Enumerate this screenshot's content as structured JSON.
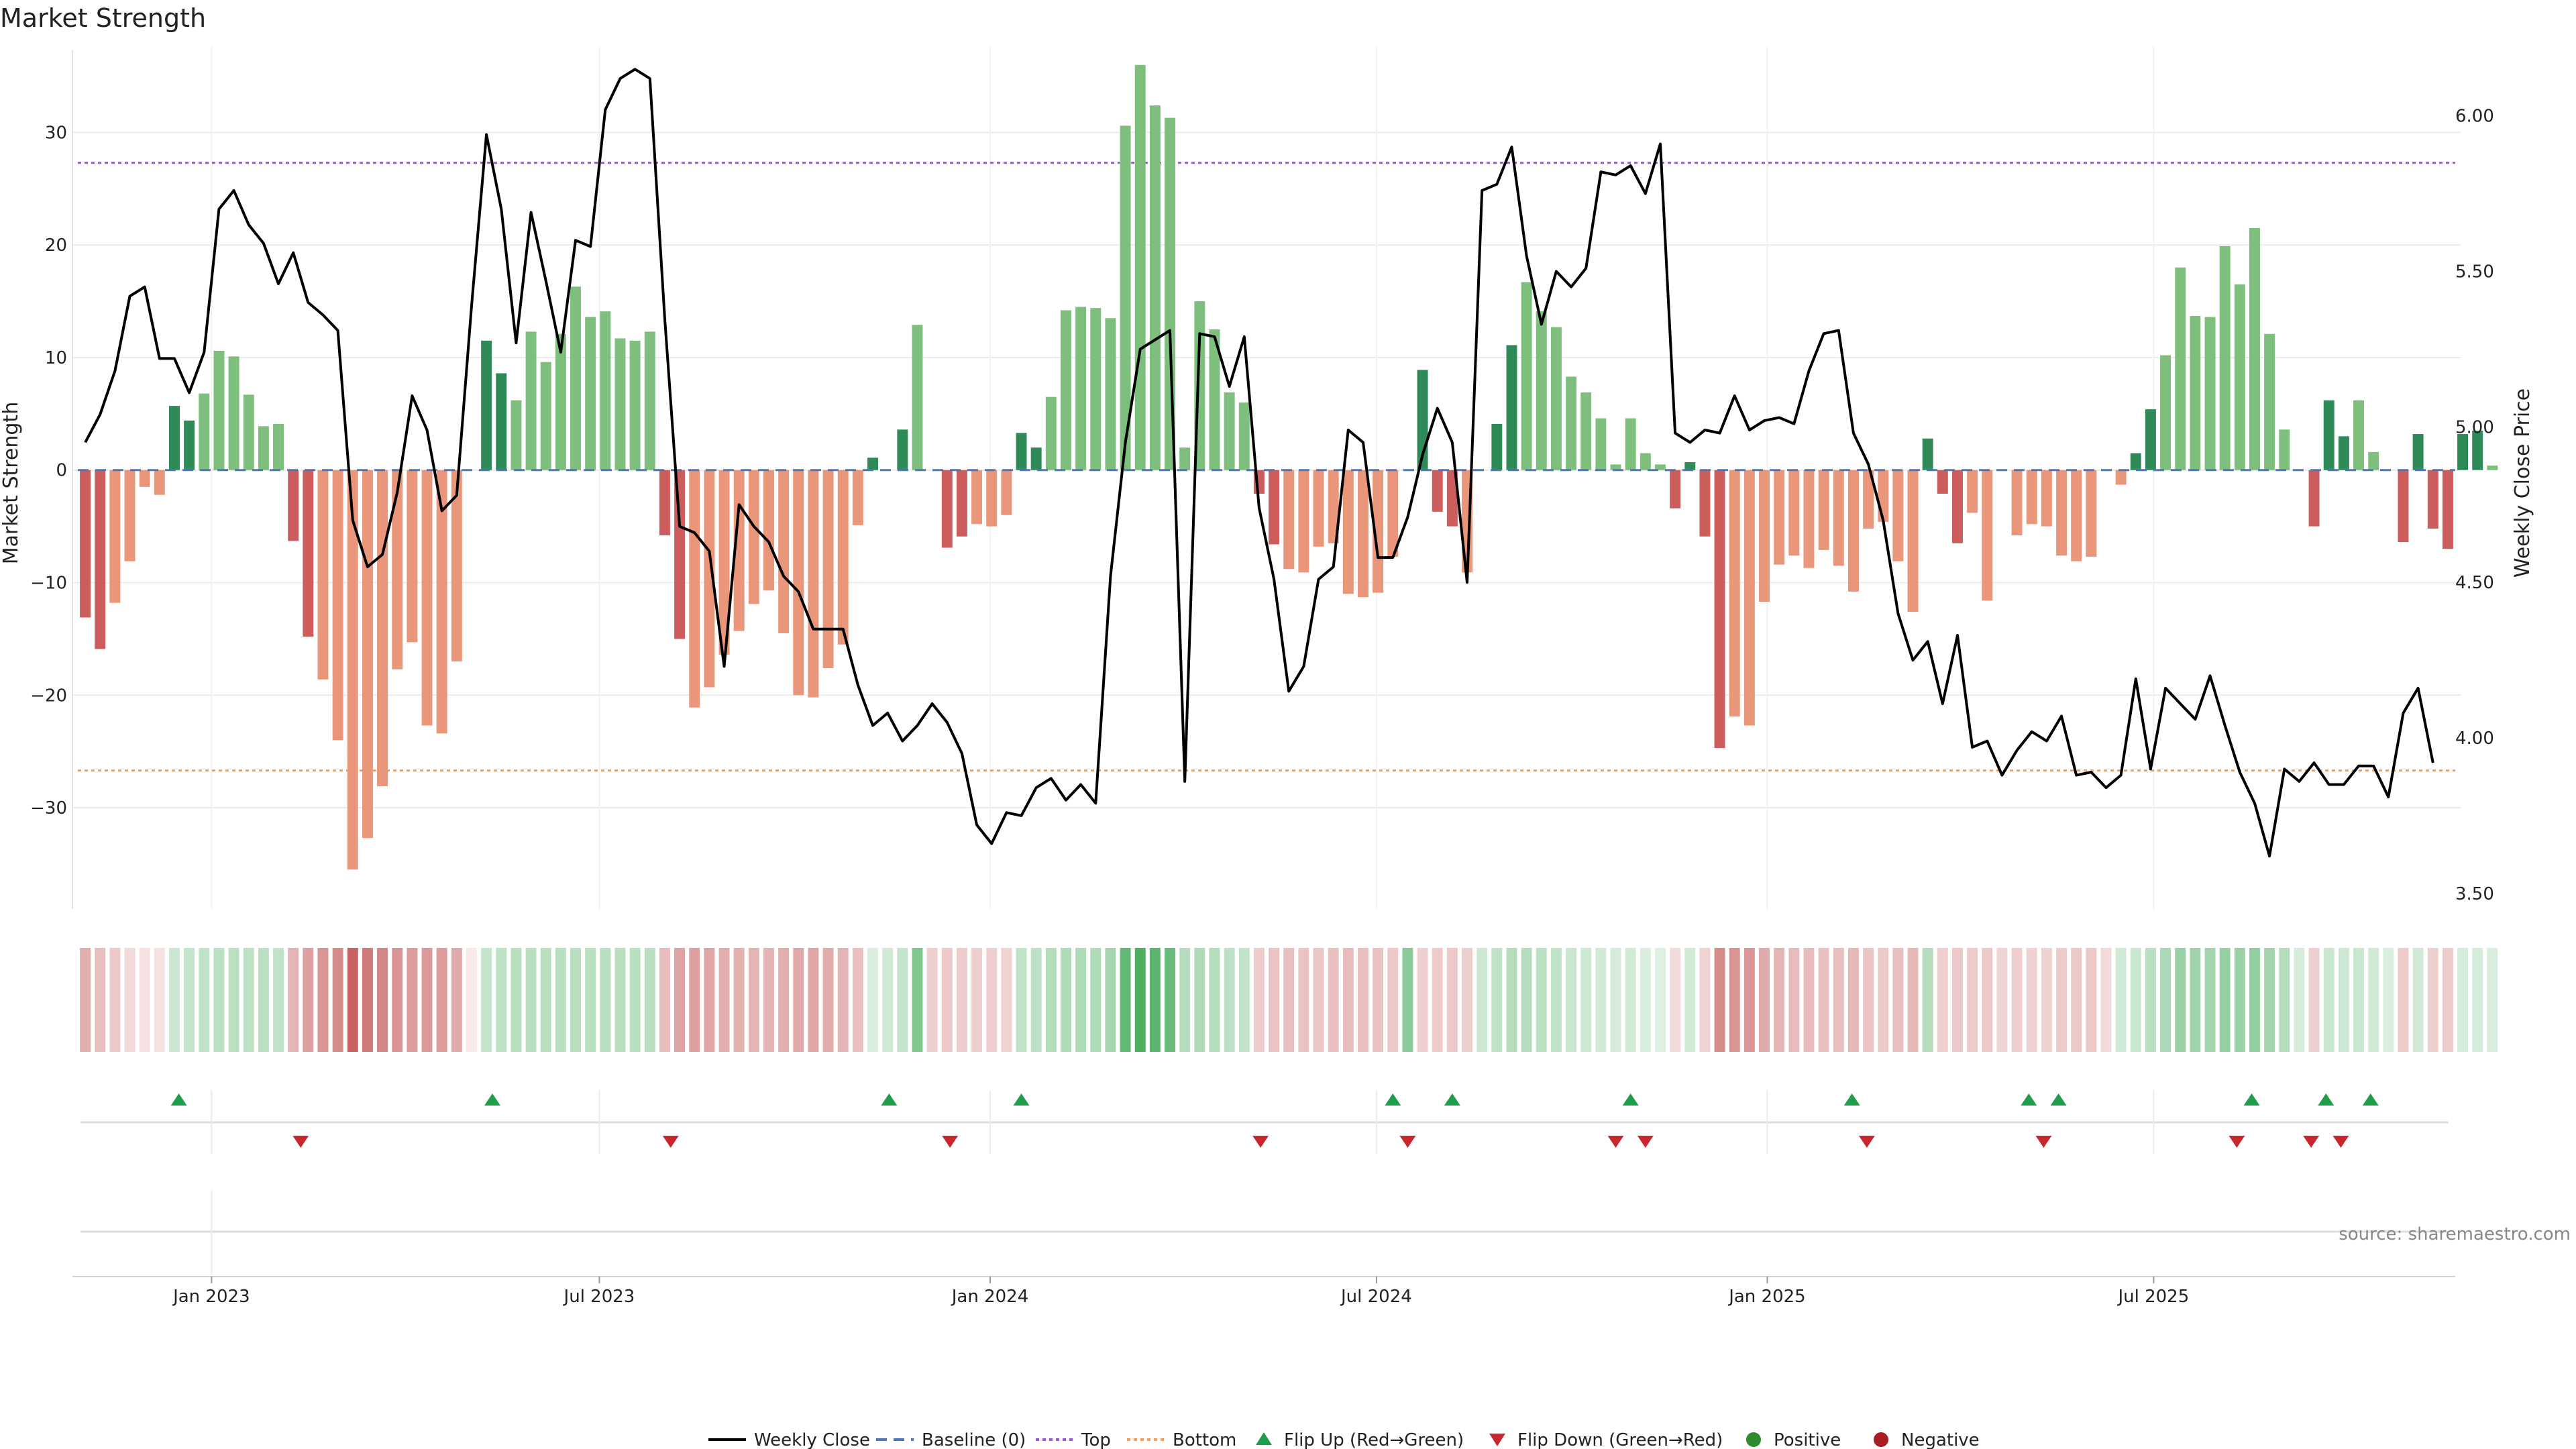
{
  "chart_data": {
    "type": "bar",
    "title": "Market Strength",
    "ylabel": "Market Strength",
    "y2label": "Weekly Close Price",
    "source": "source: sharemaestro.com",
    "ylim": [
      -39,
      37
    ],
    "ylim2": [
      3.45,
      6.2
    ],
    "yticks": [
      -30,
      -20,
      -10,
      0,
      10,
      20,
      30
    ],
    "yticks2": [
      3.5,
      4.0,
      4.5,
      5.0,
      5.5,
      6.0
    ],
    "ytick2_labels": [
      "3.50",
      "4.00",
      "4.50",
      "5.00",
      "5.50",
      "6.00"
    ],
    "x_start": "2022-10-26",
    "week_count": 160,
    "x_tick_weeks": [
      8.5,
      34.6,
      60.9,
      86.9,
      113.2,
      139.2
    ],
    "x_tick_labels": [
      "Jan 2023",
      "Jul 2023",
      "Jan 2024",
      "Jul 2024",
      "Jan 2025",
      "Jul 2025"
    ],
    "top_line": 27.3,
    "bottom_line": -26.7,
    "strength": [
      -13.1,
      -15.9,
      -11.8,
      -8.1,
      -1.5,
      -2.2,
      5.7,
      4.4,
      6.8,
      10.6,
      10.1,
      6.7,
      3.9,
      4.1,
      -6.3,
      -14.8,
      -18.6,
      -24.0,
      -35.5,
      -32.7,
      -28.1,
      -17.7,
      -15.3,
      -22.7,
      -23.4,
      -17.0,
      0,
      11.5,
      8.6,
      6.2,
      12.3,
      9.6,
      12.1,
      16.3,
      13.6,
      14.1,
      11.7,
      11.5,
      12.3,
      -5.8,
      -15.0,
      -21.1,
      -19.3,
      -16.4,
      -14.3,
      -11.9,
      -10.7,
      -14.5,
      -20.0,
      -20.2,
      -17.6,
      -15.5,
      -4.9,
      1.1,
      0,
      3.6,
      12.9,
      0,
      -6.9,
      -5.9,
      -4.8,
      -5.0,
      -4.0,
      3.3,
      2.0,
      6.5,
      14.2,
      14.5,
      14.4,
      13.5,
      30.6,
      36.0,
      32.4,
      31.3,
      2.0,
      15.0,
      12.5,
      6.9,
      6.0,
      -2.1,
      -6.6,
      -8.8,
      -9.1,
      -6.8,
      -6.5,
      -11.0,
      -11.3,
      -10.9,
      -7.7,
      0,
      8.9,
      -3.7,
      -5.0,
      -9.1,
      0,
      4.1,
      11.1,
      16.7,
      14.1,
      12.7,
      8.3,
      6.9,
      4.6,
      0.5,
      4.6,
      1.5,
      0.5,
      -3.4,
      0.7,
      -5.9,
      -24.7,
      -21.9,
      -22.7,
      -11.7,
      -8.4,
      -7.6,
      -8.7,
      -7.1,
      -8.5,
      -10.8,
      -5.2,
      -4.6,
      -8.1,
      -12.6,
      2.8,
      -2.1,
      -6.5,
      -3.8,
      -11.6,
      0,
      -5.8,
      -4.8,
      -5.0,
      -7.6,
      -8.1,
      -7.7,
      0,
      -1.3,
      1.5,
      5.4,
      10.2,
      18.0,
      13.7,
      13.6,
      19.9,
      16.5,
      21.5,
      12.1,
      3.6,
      0,
      -5.0,
      6.2,
      3.0,
      6.2,
      1.6,
      0,
      -6.4,
      3.2,
      -5.2,
      -7.0,
      3.2,
      3.5,
      0.4
    ],
    "close_weeks": [
      0,
      1,
      2,
      3,
      4,
      5,
      6,
      7,
      8,
      9,
      10,
      11,
      12,
      13,
      14,
      15,
      16,
      17,
      18,
      19,
      20,
      21,
      22,
      23,
      24,
      25,
      26,
      27,
      28,
      29,
      30,
      31,
      32,
      33,
      34,
      35,
      36,
      37,
      38,
      39,
      40,
      41,
      42,
      43,
      44,
      45,
      46,
      47,
      48,
      49,
      50,
      51,
      52,
      53,
      54,
      55,
      56,
      57,
      58,
      59,
      60,
      61,
      62,
      63,
      64,
      65,
      66,
      67,
      68,
      69,
      70,
      71,
      72,
      73,
      74,
      75,
      76,
      77,
      78,
      79,
      80,
      81,
      82,
      83,
      84,
      85,
      86,
      87,
      88,
      89,
      90,
      91,
      92,
      93,
      94,
      95,
      96,
      97,
      98,
      99,
      100,
      101,
      102,
      103,
      104,
      105,
      106,
      107,
      108,
      109,
      110,
      111,
      112,
      113,
      114,
      115,
      116,
      117,
      118,
      119,
      120,
      121,
      122,
      123,
      124,
      125,
      126,
      127,
      128,
      129,
      130,
      131,
      132,
      133,
      134,
      135,
      136,
      137,
      138,
      139,
      140,
      141,
      142,
      143,
      144,
      145,
      146,
      147,
      148,
      149,
      150,
      151,
      152,
      153,
      154,
      155,
      156,
      157,
      158,
      159
    ],
    "close": [
      4.95,
      5.04,
      5.18,
      5.42,
      5.45,
      5.22,
      5.22,
      5.11,
      5.24,
      5.7,
      5.76,
      5.65,
      5.59,
      5.46,
      5.56,
      5.4,
      5.36,
      5.31,
      4.7,
      4.55,
      4.59,
      4.79,
      5.1,
      4.99,
      4.73,
      4.78,
      5.39,
      5.94,
      5.7,
      5.27,
      5.69,
      5.47,
      5.24,
      5.6,
      5.58,
      6.02,
      6.12,
      6.15,
      6.12,
      5.35,
      4.68,
      4.66,
      4.6,
      4.23,
      4.75,
      4.68,
      4.63,
      4.52,
      4.47,
      4.35,
      4.35,
      4.35,
      4.17,
      4.04,
      4.08,
      3.99,
      4.04,
      4.11,
      4.05,
      3.95,
      3.72,
      3.66,
      3.76,
      3.75,
      3.84,
      3.87,
      3.8,
      3.85,
      3.79,
      4.52,
      4.95,
      5.25,
      5.28,
      5.31,
      3.86,
      5.3,
      5.29,
      5.13,
      5.29,
      4.74,
      4.51,
      4.15,
      4.23,
      4.51,
      4.55,
      4.99,
      4.95,
      4.58,
      4.58,
      4.71,
      4.91,
      5.06,
      4.95,
      4.5,
      5.76,
      5.78,
      5.9,
      5.55,
      5.33,
      5.5,
      5.45,
      5.51,
      5.82,
      5.81,
      5.84,
      5.75,
      5.91,
      4.98,
      4.95,
      4.99,
      4.98,
      5.1,
      4.99,
      5.02,
      5.03,
      5.01,
      5.18,
      5.3,
      5.31,
      4.98,
      4.88,
      4.7,
      4.4,
      4.25,
      4.31,
      4.11,
      4.33,
      3.97,
      3.99,
      3.88,
      3.96,
      4.02,
      3.99,
      4.07,
      3.88,
      3.89,
      3.84,
      3.88,
      4.19,
      3.9,
      4.16,
      4.11,
      4.06,
      4.2,
      4.04,
      3.89,
      3.79,
      3.62,
      3.9,
      3.86,
      3.92,
      3.85,
      3.85,
      3.91,
      3.91,
      3.81,
      4.08,
      4.16,
      3.92
    ],
    "heat": [
      -0.44,
      -0.35,
      -0.3,
      -0.2,
      -0.16,
      -0.15,
      0.25,
      0.28,
      0.3,
      0.33,
      0.33,
      0.32,
      0.33,
      0.3,
      -0.4,
      -0.52,
      -0.58,
      -0.62,
      -0.85,
      -0.72,
      -0.66,
      -0.58,
      -0.53,
      -0.55,
      -0.53,
      -0.46,
      -0.12,
      0.28,
      0.32,
      0.34,
      0.34,
      0.34,
      0.34,
      0.34,
      0.34,
      0.34,
      0.34,
      0.34,
      0.34,
      -0.36,
      -0.5,
      -0.52,
      -0.48,
      -0.44,
      -0.42,
      -0.4,
      -0.41,
      -0.44,
      -0.47,
      -0.48,
      -0.45,
      -0.4,
      -0.34,
      0.18,
      0.22,
      0.28,
      0.6,
      -0.26,
      -0.3,
      -0.28,
      -0.26,
      -0.27,
      -0.24,
      0.3,
      0.32,
      0.36,
      0.38,
      0.38,
      0.38,
      0.42,
      0.75,
      0.85,
      0.78,
      0.72,
      0.35,
      0.38,
      0.36,
      0.32,
      0.3,
      -0.28,
      -0.32,
      -0.34,
      -0.32,
      -0.31,
      -0.34,
      -0.36,
      -0.35,
      -0.33,
      -0.3,
      0.55,
      -0.26,
      -0.28,
      -0.3,
      -0.26,
      0.24,
      0.3,
      0.36,
      0.35,
      0.33,
      0.3,
      0.26,
      0.24,
      0.22,
      0.2,
      0.22,
      0.18,
      0.16,
      -0.2,
      0.22,
      -0.24,
      -0.62,
      -0.58,
      -0.56,
      -0.46,
      -0.4,
      -0.36,
      -0.36,
      -0.34,
      -0.35,
      -0.38,
      -0.32,
      -0.3,
      -0.34,
      -0.38,
      0.35,
      -0.26,
      -0.3,
      -0.28,
      -0.3,
      -0.24,
      -0.26,
      -0.25,
      -0.25,
      -0.28,
      -0.3,
      -0.3,
      -0.2,
      0.22,
      0.26,
      0.34,
      0.4,
      0.48,
      0.46,
      0.44,
      0.5,
      0.48,
      0.52,
      0.44,
      0.35,
      0.2,
      -0.26,
      0.26,
      0.24,
      0.26,
      0.22,
      0.18,
      -0.28,
      0.22,
      -0.26,
      -0.28,
      0.2,
      0.2,
      0.18
    ],
    "flip_up_weeks": [
      6.3,
      27.4,
      54.1,
      63.0,
      88.0,
      92.0,
      104.0,
      118.9,
      130.8,
      132.8,
      145.8,
      150.8,
      153.8
    ],
    "flip_down_weeks": [
      14.5,
      39.4,
      58.2,
      79.1,
      89.0,
      103.0,
      105.0,
      119.9,
      131.8,
      144.8,
      149.8,
      151.8
    ],
    "legend": [
      "Weekly Close",
      "Baseline (0)",
      "Top",
      "Bottom",
      "Flip Up (Red→Green)",
      "Flip Down (Green→Red)",
      "Positive",
      "Negative"
    ]
  },
  "colors": {
    "pos_strong": "#2e8b57",
    "pos_light": "#7ebf7e",
    "neg_strong": "#cd5c5c",
    "neg_light": "#e9967a",
    "top_line": "#9b59d0",
    "bottom_line": "#f0a060",
    "baseline": "#4a78b8",
    "close_line": "#000000",
    "flip_up": "#1e9e4a",
    "flip_down": "#c8282d",
    "positive_dot": "#2e8b2e",
    "negative_dot": "#a81e23"
  }
}
